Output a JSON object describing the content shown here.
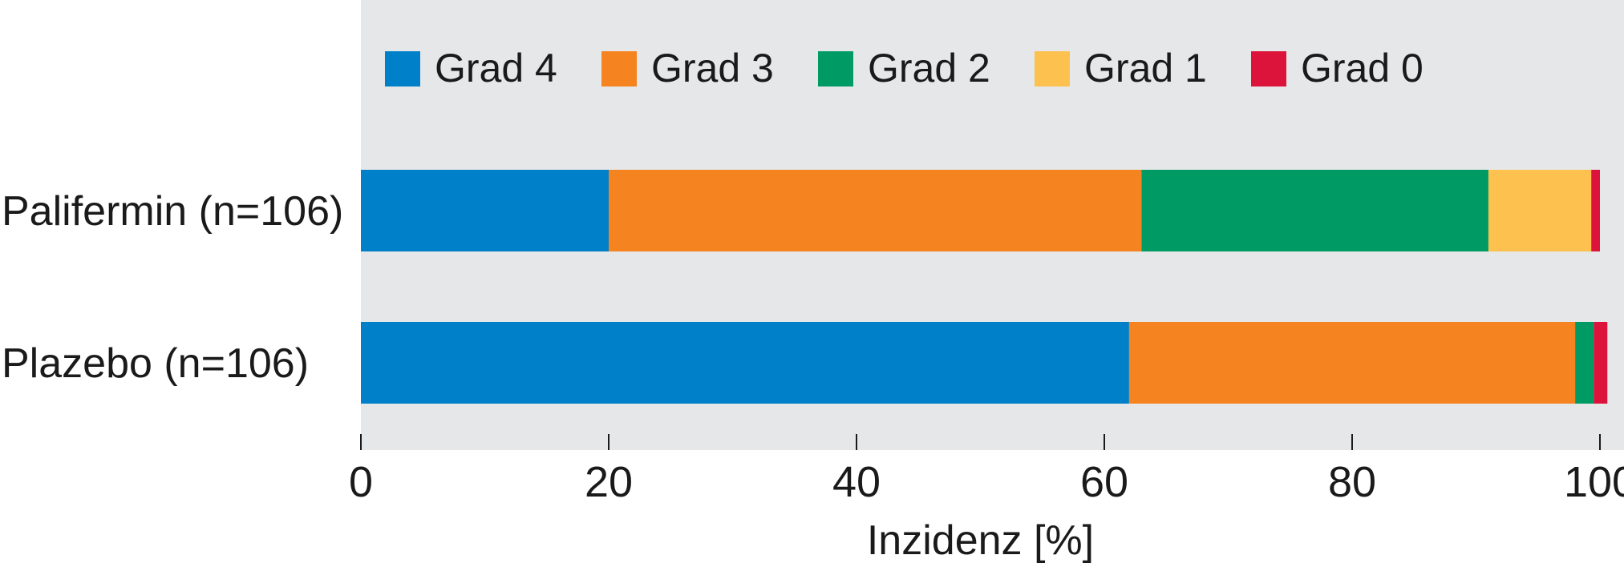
{
  "chart_data": {
    "type": "bar",
    "orientation": "horizontal",
    "stacked": true,
    "categories": [
      "Palifermin (n=106)",
      "Plazebo (n=106)"
    ],
    "series": [
      {
        "name": "Grad 4",
        "color": "#0080c8",
        "values": [
          20,
          62
        ]
      },
      {
        "name": "Grad 3",
        "color": "#f58420",
        "values": [
          43,
          36
        ]
      },
      {
        "name": "Grad 2",
        "color": "#009b65",
        "values": [
          28,
          1.5
        ]
      },
      {
        "name": "Grad 1",
        "color": "#fdc150",
        "values": [
          8.3,
          0
        ]
      },
      {
        "name": "Grad 0",
        "color": "#dc143c",
        "values": [
          0.7,
          1.1
        ]
      }
    ],
    "xlabel": "Inzidenz [%]",
    "ylabel": "",
    "xlim": [
      0,
      100
    ],
    "xticks": [
      0,
      20,
      40,
      60,
      80,
      100
    ],
    "grid": false,
    "legend_position": "top",
    "plot_background": "#e6e7e8"
  }
}
